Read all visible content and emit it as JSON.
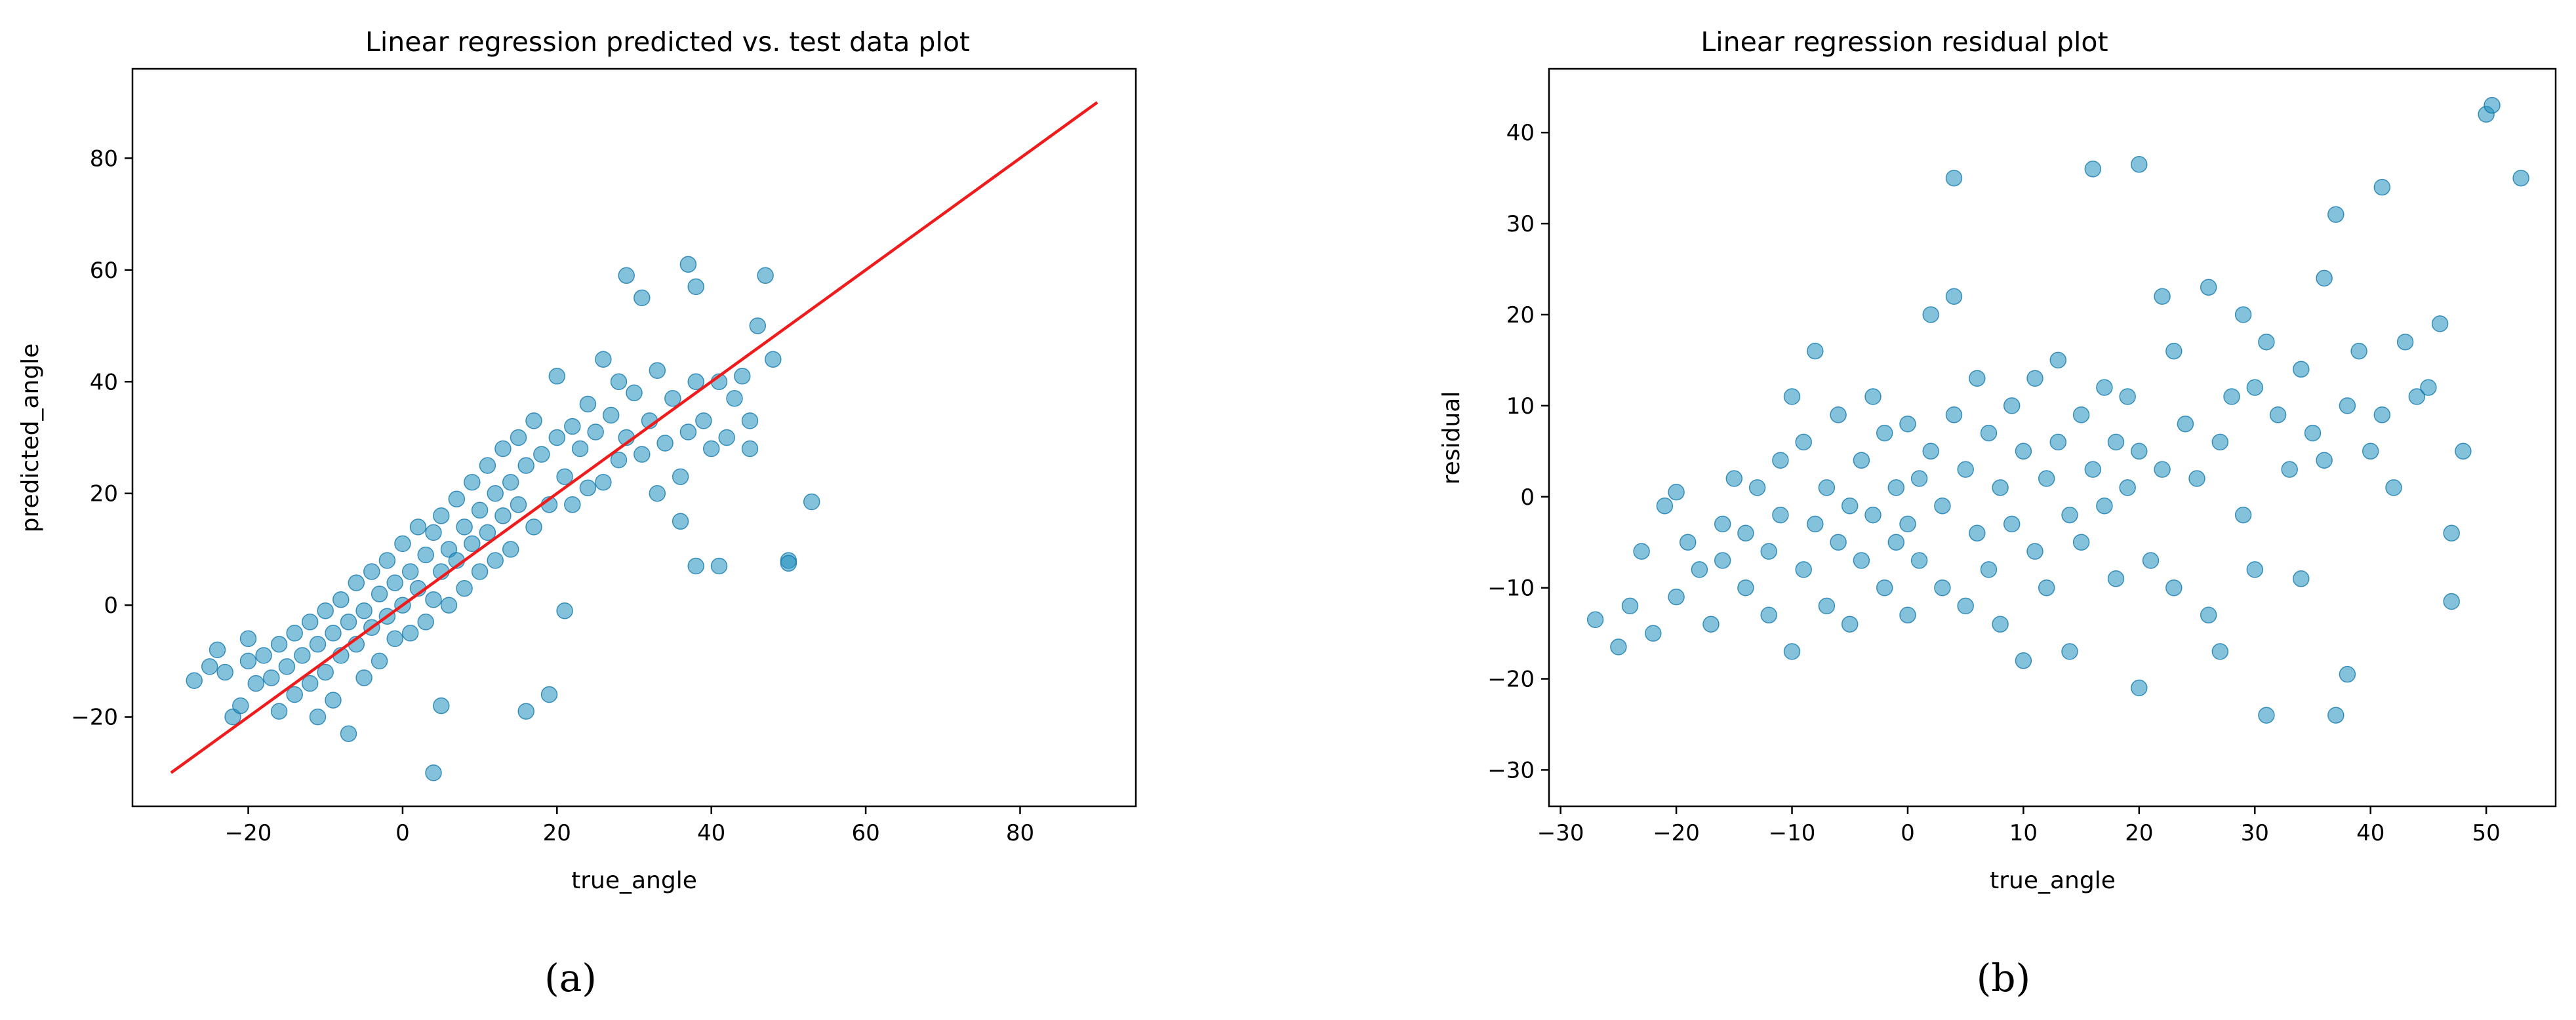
{
  "chart_data": [
    {
      "type": "scatter",
      "panel_label": "(a)",
      "title": "Linear regression predicted vs. test data plot",
      "xlabel": "true_angle",
      "ylabel": "predicted_angle",
      "xlim": [
        -35,
        95
      ],
      "ylim": [
        -36,
        96
      ],
      "xticks": [
        -20,
        0,
        20,
        40,
        60,
        80
      ],
      "yticks": [
        -20,
        0,
        20,
        40,
        60,
        80
      ],
      "grid": false,
      "colors": {
        "points": "#1f8fc0",
        "line": "#ee1c1c"
      },
      "reference_line": {
        "x": [
          -30,
          90
        ],
        "y": [
          -30,
          90
        ]
      },
      "points": [
        [
          -27,
          -13.5
        ],
        [
          -25,
          -11
        ],
        [
          -24,
          -8
        ],
        [
          -23,
          -12
        ],
        [
          -22,
          -20
        ],
        [
          -21,
          -18
        ],
        [
          -20,
          -10
        ],
        [
          -20,
          -6
        ],
        [
          -19,
          -14
        ],
        [
          -18,
          -9
        ],
        [
          -17,
          -13
        ],
        [
          -16,
          -7
        ],
        [
          -16,
          -19
        ],
        [
          -15,
          -11
        ],
        [
          -14,
          -5
        ],
        [
          -14,
          -16
        ],
        [
          -13,
          -9
        ],
        [
          -12,
          -3
        ],
        [
          -12,
          -14
        ],
        [
          -11,
          -7
        ],
        [
          -11,
          -20
        ],
        [
          -10,
          -1
        ],
        [
          -10,
          -12
        ],
        [
          -9,
          -5
        ],
        [
          -9,
          -17
        ],
        [
          -8,
          1
        ],
        [
          -8,
          -9
        ],
        [
          -7,
          -3
        ],
        [
          -7,
          -23
        ],
        [
          -6,
          4
        ],
        [
          -6,
          -7
        ],
        [
          -5,
          -1
        ],
        [
          -5,
          -13
        ],
        [
          -4,
          6
        ],
        [
          -4,
          -4
        ],
        [
          -3,
          2
        ],
        [
          -3,
          -10
        ],
        [
          -2,
          8
        ],
        [
          -2,
          -2
        ],
        [
          -1,
          4
        ],
        [
          -1,
          -6
        ],
        [
          0,
          11
        ],
        [
          0,
          0
        ],
        [
          1,
          6
        ],
        [
          1,
          -5
        ],
        [
          2,
          14
        ],
        [
          2,
          3
        ],
        [
          3,
          9
        ],
        [
          3,
          -3
        ],
        [
          4,
          13
        ],
        [
          4,
          1
        ],
        [
          4,
          -30
        ],
        [
          5,
          16
        ],
        [
          5,
          6
        ],
        [
          5,
          -18
        ],
        [
          6,
          10
        ],
        [
          6,
          0
        ],
        [
          7,
          19
        ],
        [
          7,
          8
        ],
        [
          8,
          14
        ],
        [
          8,
          3
        ],
        [
          9,
          22
        ],
        [
          9,
          11
        ],
        [
          10,
          17
        ],
        [
          10,
          6
        ],
        [
          11,
          25
        ],
        [
          11,
          13
        ],
        [
          12,
          20
        ],
        [
          12,
          8
        ],
        [
          13,
          28
        ],
        [
          13,
          16
        ],
        [
          14,
          22
        ],
        [
          14,
          10
        ],
        [
          15,
          30
        ],
        [
          15,
          18
        ],
        [
          16,
          25
        ],
        [
          16,
          -19
        ],
        [
          17,
          33
        ],
        [
          17,
          14
        ],
        [
          18,
          27
        ],
        [
          19,
          18
        ],
        [
          19,
          -16
        ],
        [
          20,
          41
        ],
        [
          20,
          30
        ],
        [
          21,
          23
        ],
        [
          21,
          -1
        ],
        [
          22,
          32
        ],
        [
          22,
          18
        ],
        [
          23,
          28
        ],
        [
          24,
          36
        ],
        [
          24,
          21
        ],
        [
          25,
          31
        ],
        [
          26,
          44
        ],
        [
          26,
          22
        ],
        [
          27,
          34
        ],
        [
          28,
          40
        ],
        [
          28,
          26
        ],
        [
          29,
          59
        ],
        [
          29,
          30
        ],
        [
          30,
          38
        ],
        [
          31,
          55
        ],
        [
          31,
          27
        ],
        [
          32,
          33
        ],
        [
          33,
          42
        ],
        [
          33,
          20
        ],
        [
          34,
          29
        ],
        [
          35,
          37
        ],
        [
          36,
          23
        ],
        [
          36,
          15
        ],
        [
          37,
          61
        ],
        [
          37,
          31
        ],
        [
          38,
          57
        ],
        [
          38,
          40
        ],
        [
          38,
          7
        ],
        [
          39,
          33
        ],
        [
          40,
          28
        ],
        [
          41,
          40
        ],
        [
          41,
          7
        ],
        [
          42,
          30
        ],
        [
          43,
          37
        ],
        [
          44,
          41
        ],
        [
          45,
          33
        ],
        [
          45,
          28
        ],
        [
          46,
          50
        ],
        [
          47,
          59
        ],
        [
          48,
          44
        ],
        [
          50,
          8
        ],
        [
          50,
          7.5
        ],
        [
          53,
          18.5
        ]
      ]
    },
    {
      "type": "scatter",
      "panel_label": "(b)",
      "title": "Linear regression residual plot",
      "xlabel": "true_angle",
      "ylabel": "residual",
      "xlim": [
        -31,
        56
      ],
      "ylim": [
        -34,
        47
      ],
      "xticks": [
        -30,
        -20,
        -10,
        0,
        10,
        20,
        30,
        40,
        50
      ],
      "yticks": [
        -30,
        -20,
        -10,
        0,
        10,
        20,
        30,
        40
      ],
      "grid": false,
      "colors": {
        "points": "#1f8fc0"
      },
      "points": [
        [
          -27,
          -13.5
        ],
        [
          -25,
          -16.5
        ],
        [
          -24,
          -12
        ],
        [
          -23,
          -6
        ],
        [
          -22,
          -15
        ],
        [
          -21,
          -1
        ],
        [
          -20,
          0.5
        ],
        [
          -20,
          -11
        ],
        [
          -19,
          -5
        ],
        [
          -18,
          -8
        ],
        [
          -17,
          -14
        ],
        [
          -16,
          -3
        ],
        [
          -16,
          -7
        ],
        [
          -15,
          2
        ],
        [
          -14,
          -10
        ],
        [
          -14,
          -4
        ],
        [
          -13,
          1
        ],
        [
          -12,
          -6
        ],
        [
          -12,
          -13
        ],
        [
          -11,
          4
        ],
        [
          -11,
          -2
        ],
        [
          -10,
          11
        ],
        [
          -10,
          -17
        ],
        [
          -9,
          -8
        ],
        [
          -9,
          6
        ],
        [
          -8,
          -3
        ],
        [
          -8,
          16
        ],
        [
          -7,
          1
        ],
        [
          -7,
          -12
        ],
        [
          -6,
          -5
        ],
        [
          -6,
          9
        ],
        [
          -5,
          -1
        ],
        [
          -5,
          -14
        ],
        [
          -4,
          4
        ],
        [
          -4,
          -7
        ],
        [
          -3,
          -2
        ],
        [
          -3,
          11
        ],
        [
          -2,
          7
        ],
        [
          -2,
          -10
        ],
        [
          -1,
          1
        ],
        [
          -1,
          -5
        ],
        [
          0,
          8
        ],
        [
          0,
          -3
        ],
        [
          0,
          -13
        ],
        [
          1,
          2
        ],
        [
          1,
          -7
        ],
        [
          2,
          20
        ],
        [
          2,
          5
        ],
        [
          3,
          -1
        ],
        [
          3,
          -10
        ],
        [
          4,
          35
        ],
        [
          4,
          22
        ],
        [
          4,
          9
        ],
        [
          5,
          3
        ],
        [
          5,
          -12
        ],
        [
          6,
          13
        ],
        [
          6,
          -4
        ],
        [
          7,
          7
        ],
        [
          7,
          -8
        ],
        [
          8,
          1
        ],
        [
          8,
          -14
        ],
        [
          9,
          10
        ],
        [
          9,
          -3
        ],
        [
          10,
          5
        ],
        [
          10,
          -18
        ],
        [
          11,
          13
        ],
        [
          11,
          -6
        ],
        [
          12,
          2
        ],
        [
          12,
          -10
        ],
        [
          13,
          15
        ],
        [
          13,
          6
        ],
        [
          14,
          -2
        ],
        [
          14,
          -17
        ],
        [
          15,
          9
        ],
        [
          15,
          -5
        ],
        [
          16,
          3
        ],
        [
          16,
          36
        ],
        [
          17,
          12
        ],
        [
          17,
          -1
        ],
        [
          18,
          6
        ],
        [
          18,
          -9
        ],
        [
          19,
          11
        ],
        [
          19,
          1
        ],
        [
          20,
          36.5
        ],
        [
          20,
          -21
        ],
        [
          20,
          5
        ],
        [
          21,
          -7
        ],
        [
          22,
          22
        ],
        [
          22,
          3
        ],
        [
          23,
          16
        ],
        [
          23,
          -10
        ],
        [
          24,
          8
        ],
        [
          25,
          2
        ],
        [
          26,
          23
        ],
        [
          26,
          -13
        ],
        [
          27,
          6
        ],
        [
          27,
          -17
        ],
        [
          28,
          11
        ],
        [
          29,
          20
        ],
        [
          29,
          -2
        ],
        [
          30,
          12
        ],
        [
          30,
          -8
        ],
        [
          31,
          17
        ],
        [
          31,
          -24
        ],
        [
          32,
          9
        ],
        [
          33,
          3
        ],
        [
          34,
          14
        ],
        [
          34,
          -9
        ],
        [
          35,
          7
        ],
        [
          36,
          24
        ],
        [
          36,
          4
        ],
        [
          37,
          -24
        ],
        [
          37,
          31
        ],
        [
          38,
          -19.5
        ],
        [
          38,
          10
        ],
        [
          39,
          16
        ],
        [
          40,
          5
        ],
        [
          41,
          34
        ],
        [
          41,
          9
        ],
        [
          42,
          1
        ],
        [
          43,
          17
        ],
        [
          44,
          11
        ],
        [
          45,
          12
        ],
        [
          46,
          19
        ],
        [
          47,
          -4
        ],
        [
          47,
          -11.5
        ],
        [
          48,
          5
        ],
        [
          50,
          42
        ],
        [
          50.5,
          43
        ],
        [
          53,
          35
        ]
      ]
    }
  ]
}
